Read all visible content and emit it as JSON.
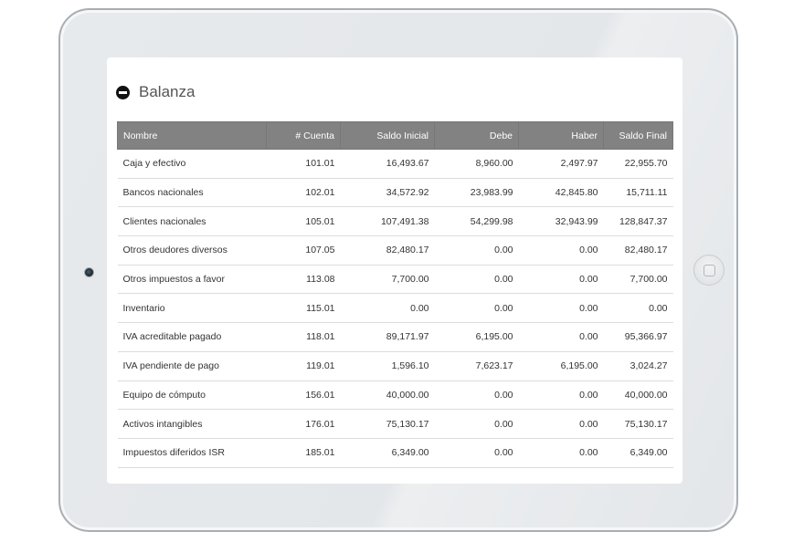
{
  "panel": {
    "title": "Balanza"
  },
  "table": {
    "headers": [
      "Nombre",
      "# Cuenta",
      "Saldo Inicial",
      "Debe",
      "Haber",
      "Saldo Final"
    ],
    "rows": [
      [
        "Caja y efectivo",
        "101.01",
        "16,493.67",
        "8,960.00",
        "2,497.97",
        "22,955.70"
      ],
      [
        "Bancos nacionales",
        "102.01",
        "34,572.92",
        "23,983.99",
        "42,845.80",
        "15,711.11"
      ],
      [
        "Clientes nacionales",
        "105.01",
        "107,491.38",
        "54,299.98",
        "32,943.99",
        "128,847.37"
      ],
      [
        "Otros deudores diversos",
        "107.05",
        "82,480.17",
        "0.00",
        "0.00",
        "82,480.17"
      ],
      [
        "Otros impuestos a favor",
        "113.08",
        "7,700.00",
        "0.00",
        "0.00",
        "7,700.00"
      ],
      [
        "Inventario",
        "115.01",
        "0.00",
        "0.00",
        "0.00",
        "0.00"
      ],
      [
        "IVA acreditable pagado",
        "118.01",
        "89,171.97",
        "6,195.00",
        "0.00",
        "95,366.97"
      ],
      [
        "IVA pendiente de pago",
        "119.01",
        "1,596.10",
        "7,623.17",
        "6,195.00",
        "3,024.27"
      ],
      [
        "Equipo de cómputo",
        "156.01",
        "40,000.00",
        "0.00",
        "0.00",
        "40,000.00"
      ],
      [
        "Activos intangibles",
        "176.01",
        "75,130.17",
        "0.00",
        "0.00",
        "75,130.17"
      ],
      [
        "Impuestos diferidos ISR",
        "185.01",
        "6,349.00",
        "0.00",
        "0.00",
        "6,349.00"
      ]
    ]
  },
  "device": {
    "camera_icon": "camera-icon",
    "home_icon": "home-button-icon"
  }
}
